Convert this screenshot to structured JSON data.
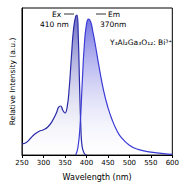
{
  "chart_data": {
    "type": "line",
    "x_label": "Wavelength (nm)",
    "y_label": "Relative Intensity (a.u.)",
    "xlim": [
      250,
      600
    ],
    "xticks": [
      250,
      300,
      350,
      400,
      450,
      500,
      550,
      600
    ],
    "ylim": [
      0,
      1.05
    ],
    "tick_labels": "x",
    "grid": false,
    "annotations": [
      "Ex",
      "410 nm",
      "Em",
      "370nm",
      "Y₃Al₂Ga₃O₁₂: Bi³⁺"
    ],
    "series": [
      {
        "color": "#2a2aa8",
        "x": [
          250,
          260,
          270,
          280,
          290,
          300,
          310,
          320,
          330,
          335,
          340,
          345,
          350,
          355,
          360,
          365,
          370,
          375,
          378,
          381,
          384,
          387,
          390,
          395,
          400
        ],
        "values": [
          0.08,
          0.09,
          0.12,
          0.15,
          0.17,
          0.18,
          0.2,
          0.24,
          0.3,
          0.34,
          0.35,
          0.32,
          0.3,
          0.34,
          0.48,
          0.7,
          0.9,
          0.99,
          1.0,
          0.85,
          0.5,
          0.2,
          0.06,
          0.01,
          0
        ]
      },
      {
        "color": "#3b3bd6",
        "x": [
          375,
          380,
          385,
          390,
          395,
          400,
          405,
          410,
          415,
          420,
          430,
          440,
          450,
          460,
          470,
          480,
          500,
          520,
          550,
          580,
          600
        ],
        "values": [
          0,
          0.05,
          0.2,
          0.5,
          0.78,
          0.93,
          0.97,
          0.95,
          0.88,
          0.8,
          0.62,
          0.46,
          0.34,
          0.25,
          0.18,
          0.13,
          0.07,
          0.04,
          0.02,
          0.01,
          0.005
        ]
      }
    ]
  }
}
